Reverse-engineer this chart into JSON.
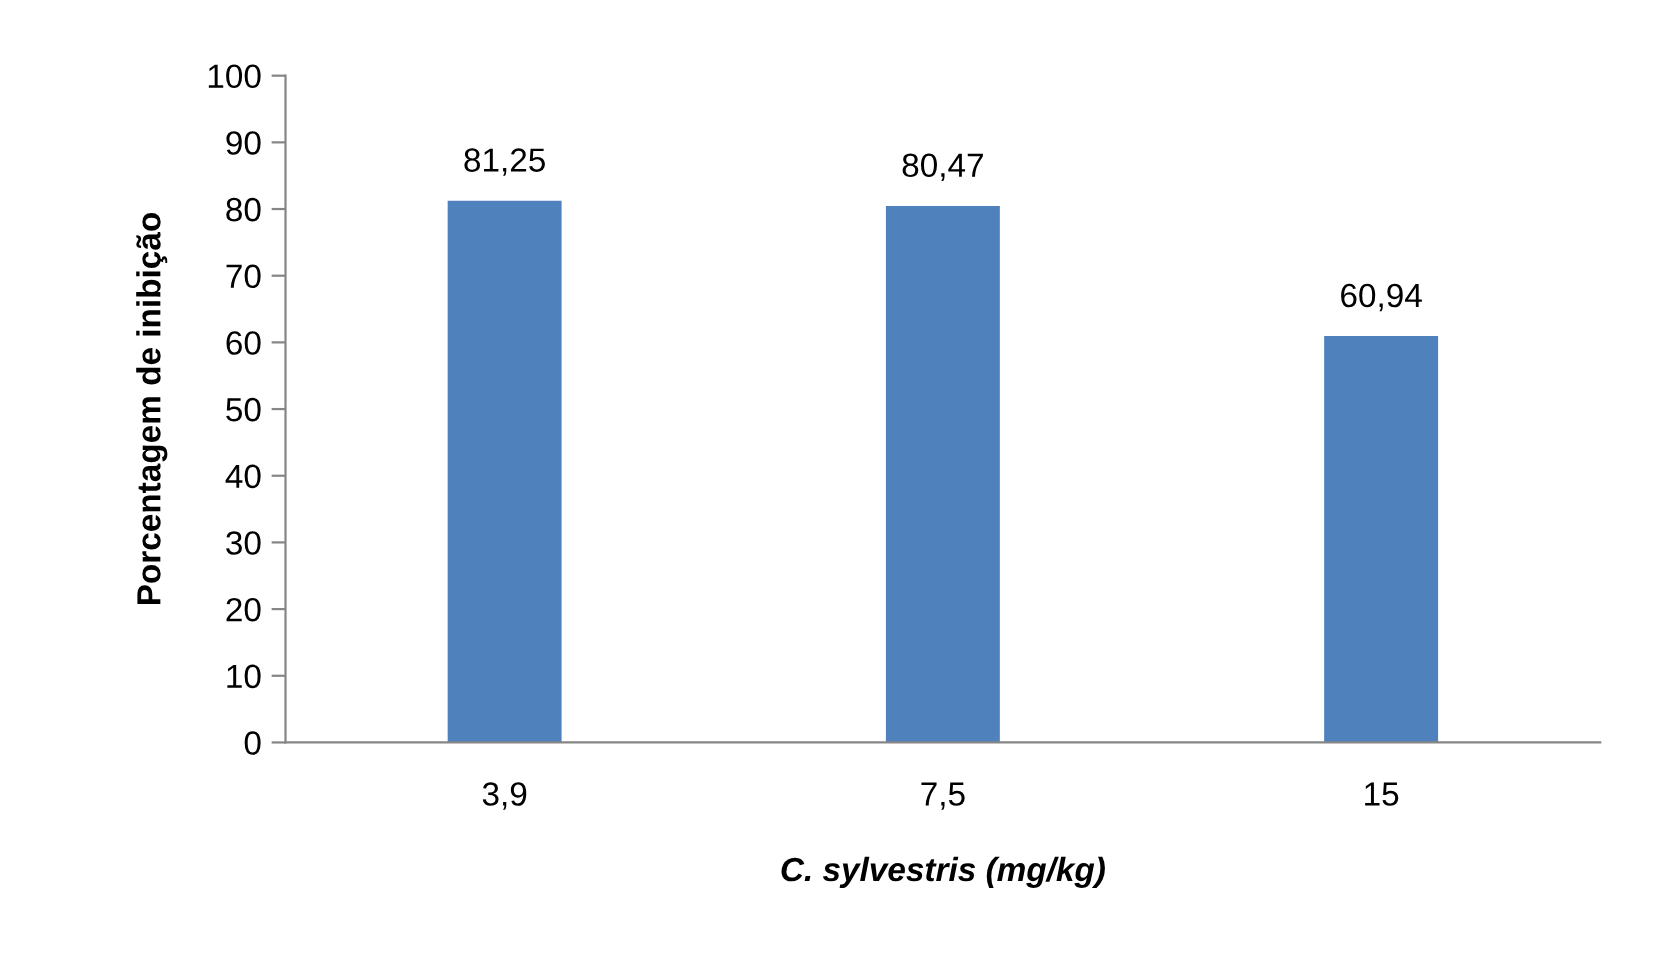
{
  "chart_data": {
    "type": "bar",
    "categories": [
      "3,9",
      "7,5",
      "15"
    ],
    "values": [
      81.25,
      80.47,
      60.94
    ],
    "value_labels": [
      "81,25",
      "80,47",
      "60,94"
    ],
    "color": "#4f81bd",
    "xlabel": "C. sylvestris (mg/kg)",
    "ylabel": "Porcentagem de inibição",
    "ylim": [
      0,
      100
    ],
    "yticks": [
      0,
      10,
      20,
      30,
      40,
      50,
      60,
      70,
      80,
      90,
      100
    ],
    "grid": false,
    "legend": false
  }
}
